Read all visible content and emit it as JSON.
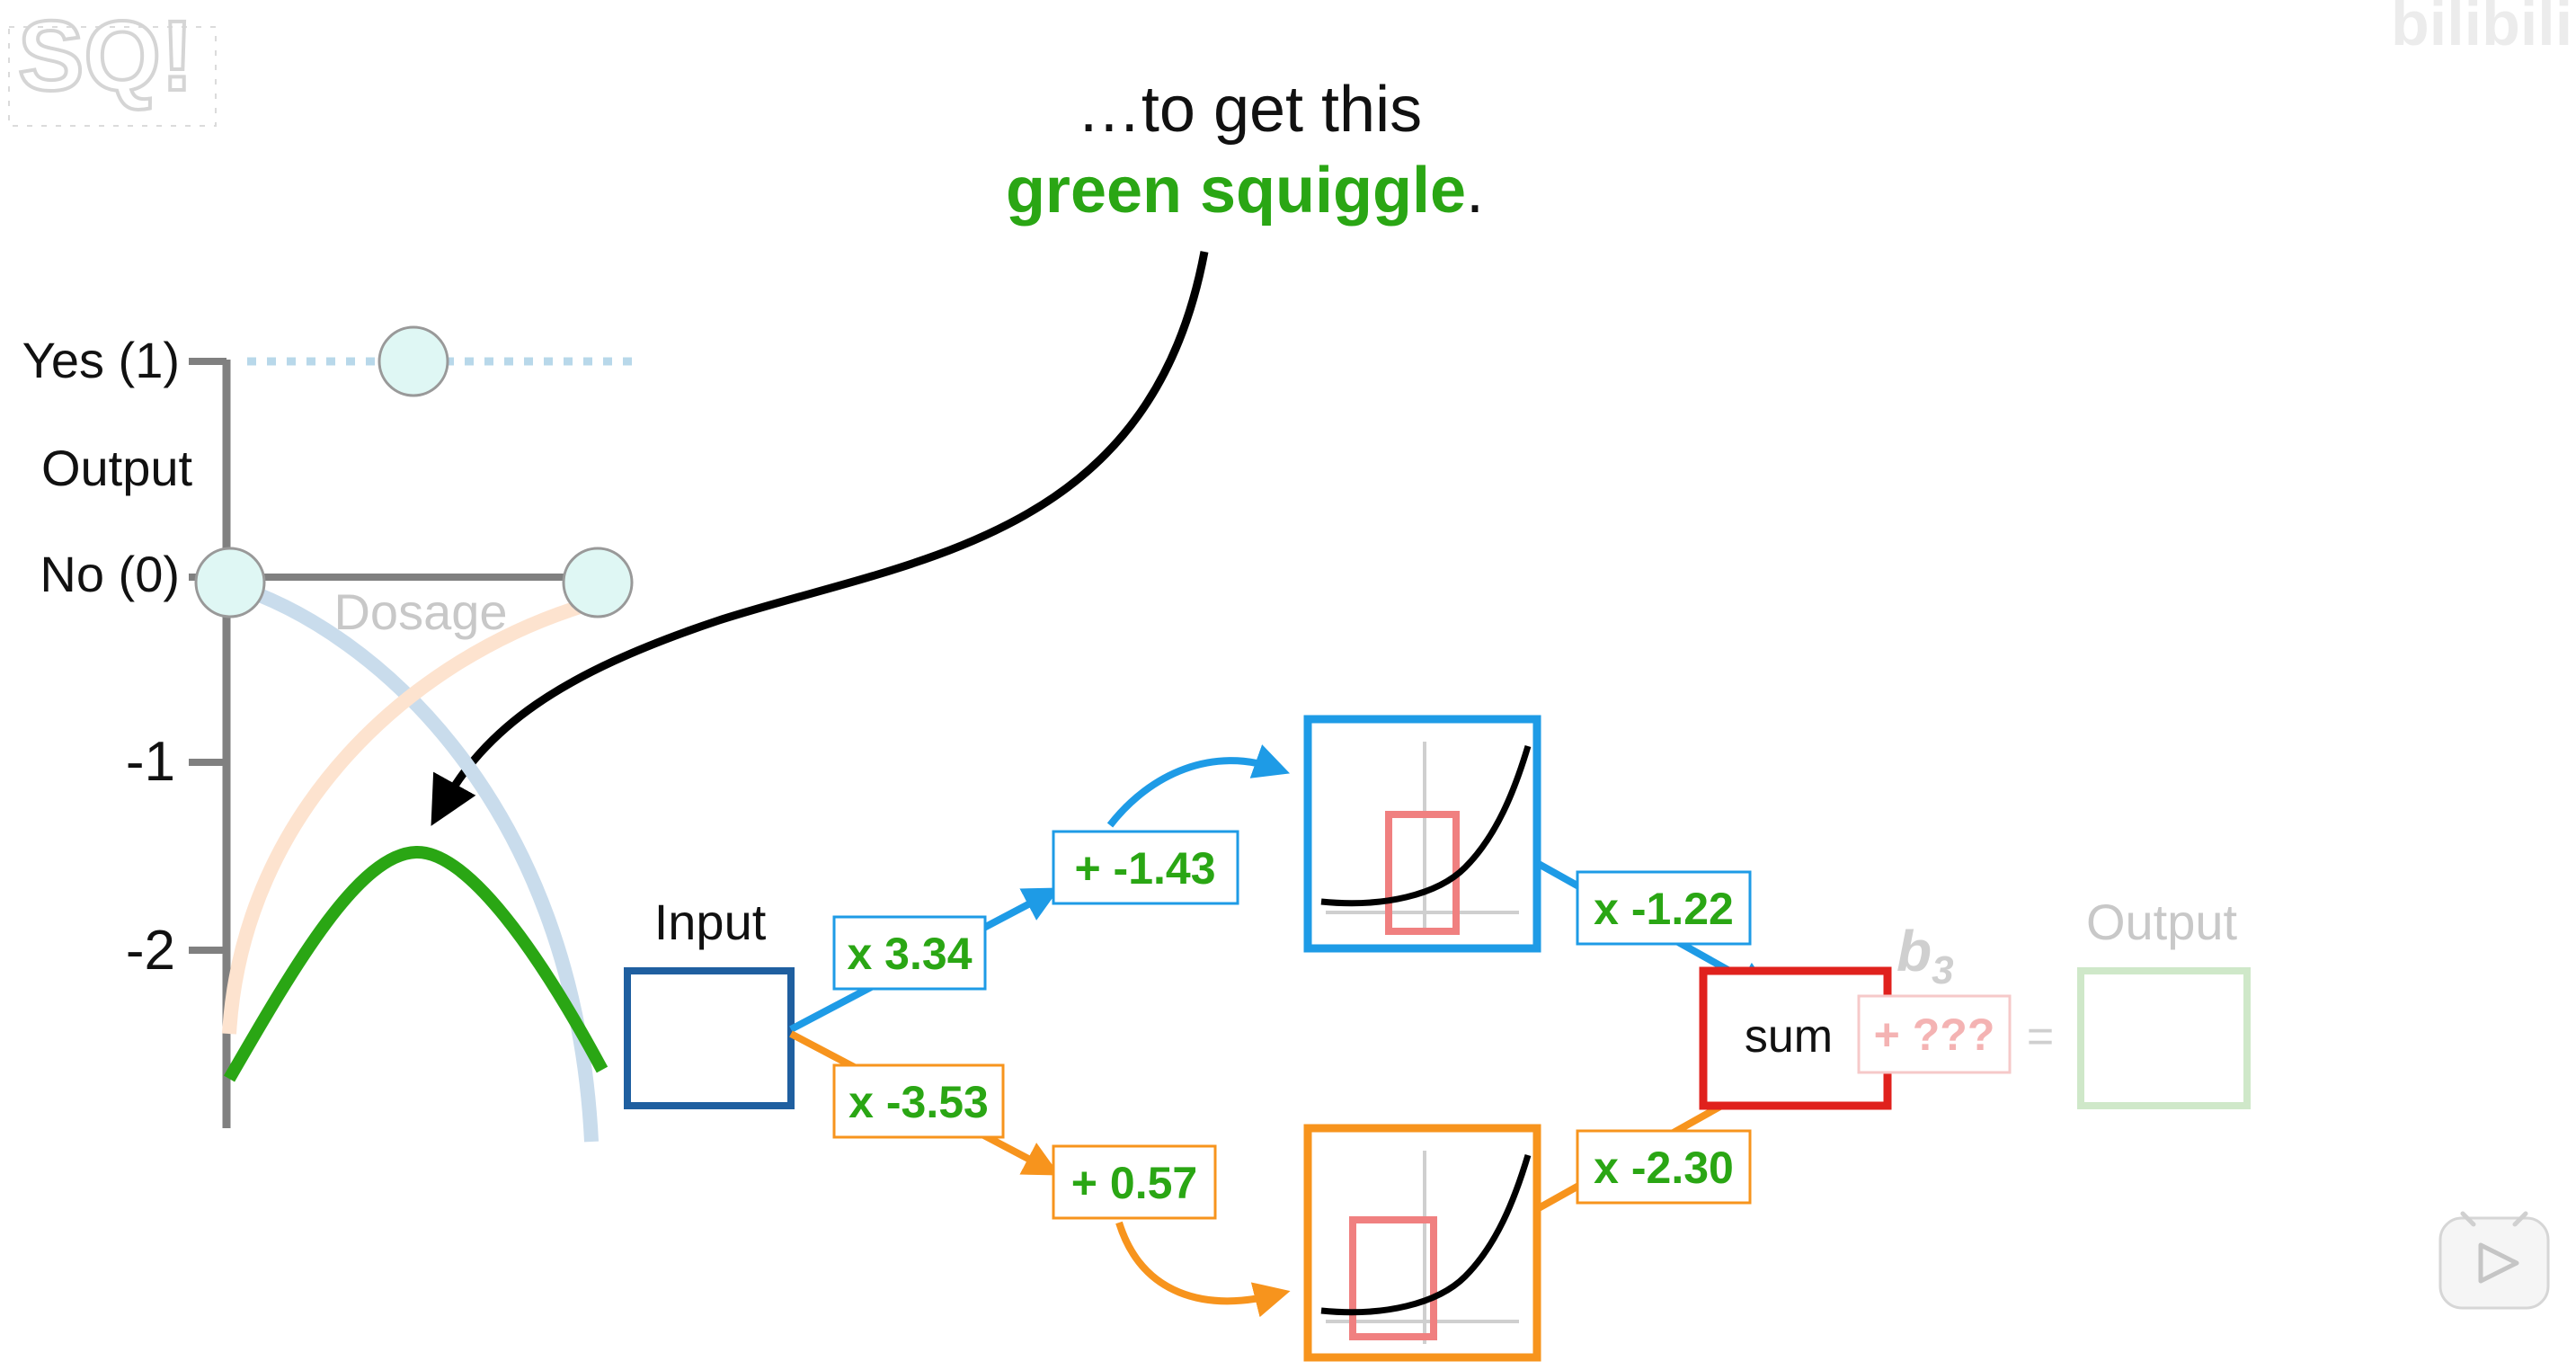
{
  "caption": {
    "line1": "…to get this",
    "line2_green": "green squiggle",
    "line2_tail": "."
  },
  "graph": {
    "y_labels": {
      "yes": "Yes (1)",
      "output": "Output",
      "no": "No (0)",
      "neg1": "-1",
      "neg2": "-2"
    },
    "x_label": "Dosage"
  },
  "network": {
    "input_label": "Input",
    "top_weight": "x 3.34",
    "top_bias": "+ -1.43",
    "top_out_weight": "x -1.22",
    "bottom_weight": "x -3.53",
    "bottom_bias": "+ 0.57",
    "bottom_out_weight": "x -2.30",
    "sum_label": "sum",
    "b3_label": "b",
    "b3_sub": "3",
    "final_bias": "+ ???",
    "equals": "=",
    "output_label": "Output"
  },
  "colors": {
    "blue": "#1e9be6",
    "orange": "#f7941d",
    "green": "#2aa614",
    "red": "#e0211d",
    "dark_blue": "#1f5fa0",
    "gray_axis": "#808080",
    "light_teal": "#dff7f4"
  },
  "icons": {
    "logo": "statquest-logo",
    "watermark": "bilibili-watermark",
    "play": "play-icon"
  }
}
